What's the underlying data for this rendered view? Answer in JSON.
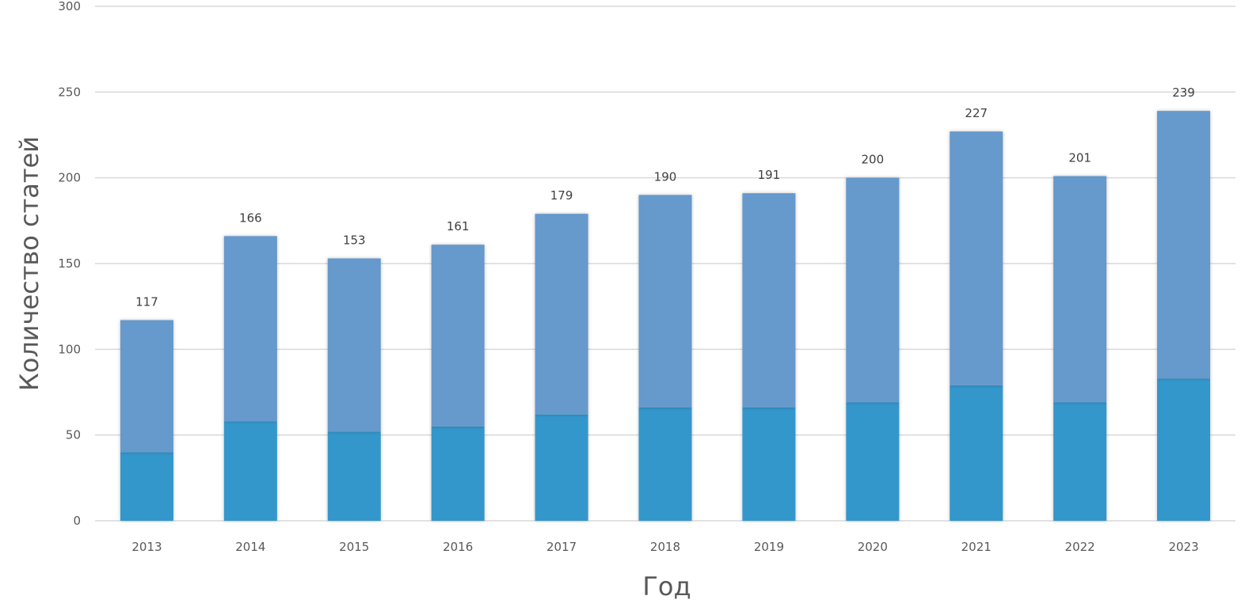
{
  "chart_data": {
    "type": "bar",
    "stacked": true,
    "title": "",
    "xlabel": "Год",
    "ylabel": "Количество статей",
    "ylim": [
      0,
      300
    ],
    "yticks": [
      0,
      50,
      100,
      150,
      200,
      250,
      300
    ],
    "grid": true,
    "legend": "none",
    "categories": [
      "2013",
      "2014",
      "2015",
      "2016",
      "2017",
      "2018",
      "2019",
      "2020",
      "2021",
      "2022",
      "2023"
    ],
    "series": [
      {
        "values": [
          40,
          58,
          52,
          55,
          62,
          66,
          66,
          69,
          79,
          69,
          83
        ],
        "color": "#3497CC"
      },
      {
        "values": [
          77,
          108,
          101,
          106,
          117,
          124,
          125,
          131,
          148,
          132,
          156
        ],
        "color": "#6699CC"
      }
    ],
    "data_labels": [
      "117",
      "166",
      "153",
      "161",
      "179",
      "190",
      "191",
      "200",
      "227",
      "201",
      "239"
    ]
  }
}
